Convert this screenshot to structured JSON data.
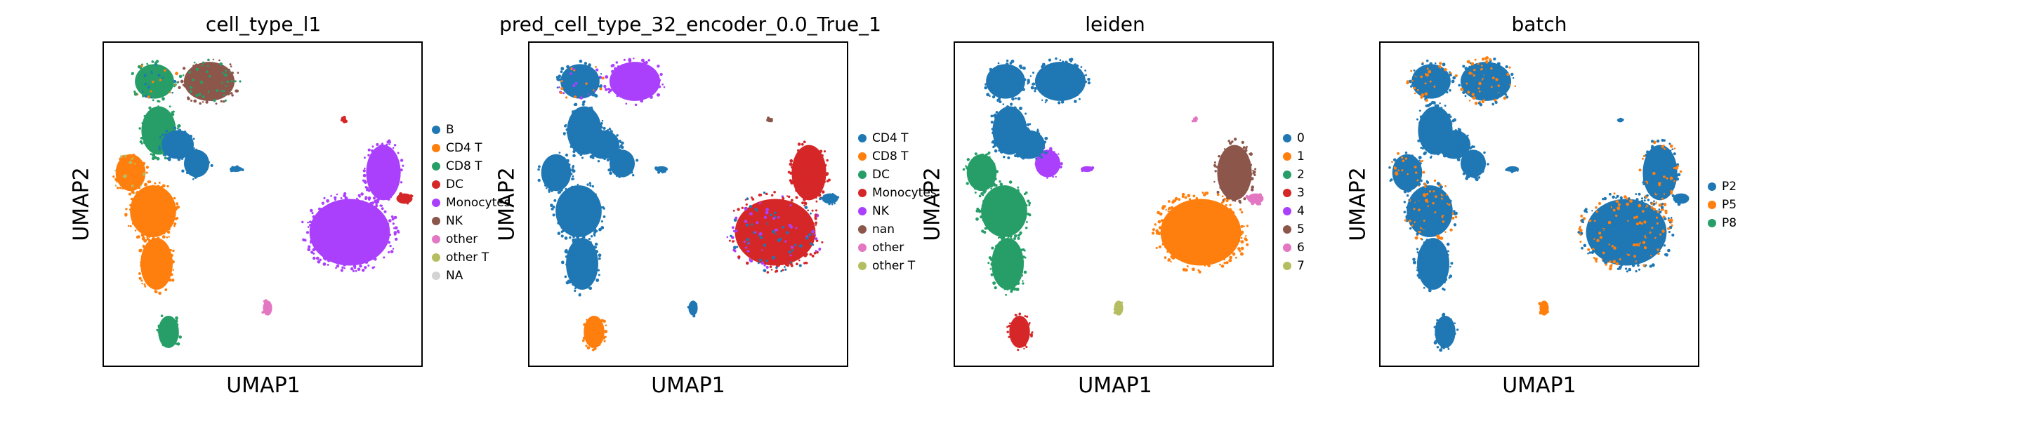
{
  "chart_data": [
    {
      "type": "scatter",
      "title": "cell_type_l1",
      "xlabel": "UMAP1",
      "ylabel": "UMAP2",
      "legend_position": "right",
      "legend": [
        {
          "label": "B",
          "color": "#1f77b4"
        },
        {
          "label": "CD4 T",
          "color": "#ff7f0e"
        },
        {
          "label": "CD8 T",
          "color": "#279e68"
        },
        {
          "label": "DC",
          "color": "#d62728"
        },
        {
          "label": "Monocytes",
          "color": "#aa40fc"
        },
        {
          "label": "NK",
          "color": "#8c564b"
        },
        {
          "label": "other",
          "color": "#e377c2"
        },
        {
          "label": "other T",
          "color": "#b5bd61"
        },
        {
          "label": "NA",
          "color": "#d3d3d3"
        }
      ],
      "regions": {
        "top_left": "#279e68",
        "top_right": "#8c564b",
        "neck": "#279e68",
        "left_bulge": "#ff7f0e",
        "right_bulge": "#1f77b4",
        "mid_dots": "#1f77b4",
        "body_upper": "#ff7f0e",
        "body_lower": "#ff7f0e",
        "bottom": "#279e68",
        "rblob_main": "#aa40fc",
        "rblob_arm": "#aa40fc",
        "rblob_tip": "#d62728",
        "small": "#e377c2",
        "speck": "#d62728",
        "tiny": "#1f77b4"
      },
      "mix": {
        "top_left": [
          "#ff7f0e",
          "#1f77b4"
        ],
        "top_right": [
          "#279e68"
        ],
        "left_bulge": [
          "#b5bd61"
        ]
      }
    },
    {
      "type": "scatter",
      "title": "pred_cell_type_32_encoder_0.0_True_1",
      "xlabel": "UMAP1",
      "ylabel": "UMAP2",
      "legend_position": "right",
      "legend": [
        {
          "label": "CD4 T",
          "color": "#1f77b4"
        },
        {
          "label": "CD8 T",
          "color": "#ff7f0e"
        },
        {
          "label": "DC",
          "color": "#279e68"
        },
        {
          "label": "Monocytes",
          "color": "#d62728"
        },
        {
          "label": "NK",
          "color": "#aa40fc"
        },
        {
          "label": "nan",
          "color": "#8c564b"
        },
        {
          "label": "other",
          "color": "#e377c2"
        },
        {
          "label": "other T",
          "color": "#b5bd61"
        }
      ],
      "regions": {
        "top_left": "#1f77b4",
        "top_right": "#aa40fc",
        "neck": "#1f77b4",
        "left_bulge": "#1f77b4",
        "right_bulge": "#1f77b4",
        "mid_dots": "#1f77b4",
        "body_upper": "#1f77b4",
        "body_lower": "#1f77b4",
        "bottom": "#ff7f0e",
        "rblob_main": "#d62728",
        "rblob_arm": "#d62728",
        "rblob_tip": "#1f77b4",
        "small": "#1f77b4",
        "speck": "#8c564b",
        "tiny": "#1f77b4"
      },
      "mix": {
        "top_left": [
          "#ff7f0e",
          "#aa40fc"
        ],
        "rblob_main": [
          "#1f77b4",
          "#aa40fc"
        ],
        "small": [
          "#d62728"
        ]
      }
    },
    {
      "type": "scatter",
      "title": "leiden",
      "xlabel": "UMAP1",
      "ylabel": "UMAP2",
      "legend_position": "right",
      "legend": [
        {
          "label": "0",
          "color": "#1f77b4"
        },
        {
          "label": "1",
          "color": "#ff7f0e"
        },
        {
          "label": "2",
          "color": "#279e68"
        },
        {
          "label": "3",
          "color": "#d62728"
        },
        {
          "label": "4",
          "color": "#aa40fc"
        },
        {
          "label": "5",
          "color": "#8c564b"
        },
        {
          "label": "6",
          "color": "#e377c2"
        },
        {
          "label": "7",
          "color": "#b5bd61"
        }
      ],
      "regions": {
        "top_left": "#1f77b4",
        "top_right": "#1f77b4",
        "neck": "#1f77b4",
        "left_bulge": "#279e68",
        "right_bulge": "#aa40fc",
        "mid_dots": "#1f77b4",
        "body_upper": "#279e68",
        "body_lower": "#279e68",
        "bottom": "#d62728",
        "rblob_main": "#ff7f0e",
        "rblob_arm": "#8c564b",
        "rblob_tip": "#e377c2",
        "small": "#b5bd61",
        "speck": "#e377c2",
        "tiny": "#aa40fc"
      },
      "mix": {}
    },
    {
      "type": "scatter",
      "title": "batch",
      "xlabel": "UMAP1",
      "ylabel": "UMAP2",
      "legend_position": "right",
      "legend": [
        {
          "label": "P2",
          "color": "#1f77b4"
        },
        {
          "label": "P5",
          "color": "#ff7f0e"
        },
        {
          "label": "P8",
          "color": "#279e68"
        }
      ],
      "regions": {
        "top_left": "#1f77b4",
        "top_right": "#1f77b4",
        "neck": "#1f77b4",
        "left_bulge": "#1f77b4",
        "right_bulge": "#1f77b4",
        "mid_dots": "#1f77b4",
        "body_upper": "#1f77b4",
        "body_lower": "#1f77b4",
        "bottom": "#1f77b4",
        "rblob_main": "#1f77b4",
        "rblob_arm": "#1f77b4",
        "rblob_tip": "#1f77b4",
        "small": "#ff7f0e",
        "speck": "#1f77b4",
        "tiny": "#1f77b4"
      },
      "mix": {
        "top_left": [
          "#ff7f0e"
        ],
        "top_right": [
          "#ff7f0e"
        ],
        "left_bulge": [
          "#ff7f0e"
        ],
        "body_upper": [
          "#ff7f0e"
        ],
        "rblob_main": [
          "#ff7f0e"
        ],
        "rblob_arm": [
          "#ff7f0e"
        ]
      }
    }
  ]
}
